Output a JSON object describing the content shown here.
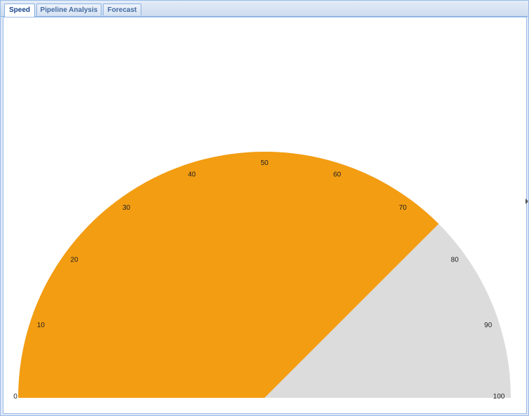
{
  "tabs": [
    {
      "label": "Speed",
      "active": true
    },
    {
      "label": "Pipeline Analysis",
      "active": false
    },
    {
      "label": "Forecast",
      "active": false
    }
  ],
  "gauge": {
    "min": 0,
    "max": 100,
    "value": 75,
    "ticks": [
      "0",
      "10",
      "20",
      "30",
      "40",
      "50",
      "60",
      "70",
      "80",
      "90",
      "100"
    ],
    "fill_color": "#f39d12",
    "empty_color": "#dcdcdc"
  }
}
